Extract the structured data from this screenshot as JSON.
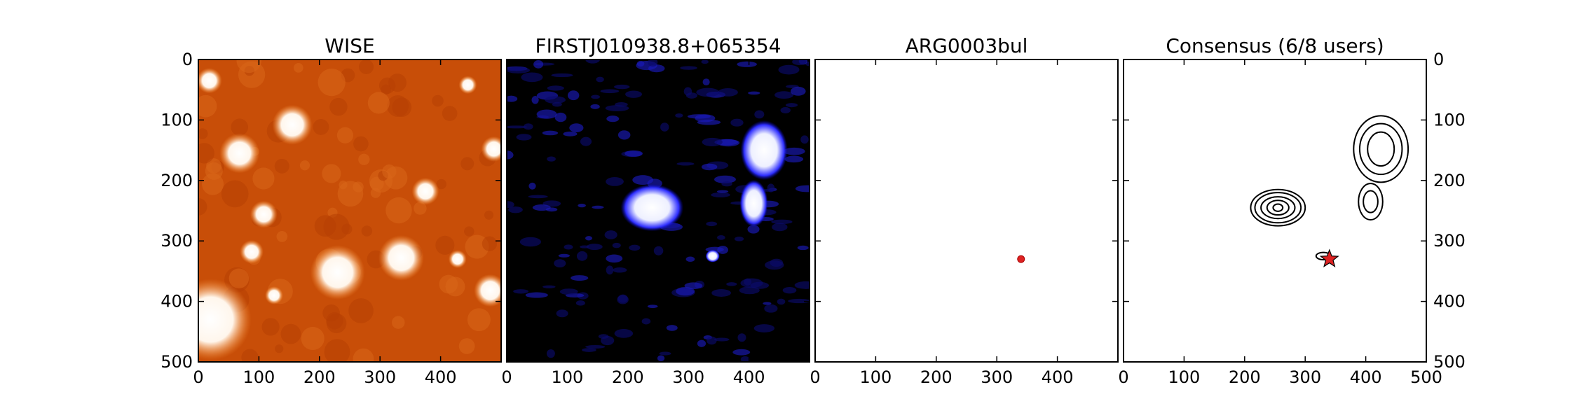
{
  "chart_data": [
    {
      "type": "image",
      "title": "WISE",
      "xlim": [
        0,
        500
      ],
      "ylim": [
        500,
        0
      ],
      "xticks": [
        0,
        100,
        200,
        300,
        400
      ],
      "yticks": [
        0,
        100,
        200,
        300,
        400,
        500
      ],
      "colormap": "orange-to-white",
      "background_color": "#c84e08",
      "sources": [
        {
          "x": 18,
          "y": 35,
          "r": 14
        },
        {
          "x": 155,
          "y": 108,
          "r": 22
        },
        {
          "x": 68,
          "y": 155,
          "r": 22
        },
        {
          "x": 488,
          "y": 148,
          "r": 14
        },
        {
          "x": 445,
          "y": 42,
          "r": 10
        },
        {
          "x": 375,
          "y": 218,
          "r": 15
        },
        {
          "x": 108,
          "y": 256,
          "r": 15
        },
        {
          "x": 88,
          "y": 318,
          "r": 13
        },
        {
          "x": 230,
          "y": 352,
          "r": 30
        },
        {
          "x": 335,
          "y": 328,
          "r": 25
        },
        {
          "x": 125,
          "y": 390,
          "r": 10
        },
        {
          "x": 482,
          "y": 382,
          "r": 18
        },
        {
          "x": 428,
          "y": 330,
          "r": 10
        },
        {
          "x": 20,
          "y": 430,
          "r": 45
        }
      ]
    },
    {
      "type": "image",
      "title": "FIRSTJ010938.8+065354",
      "xlim": [
        0,
        500
      ],
      "ylim": [
        500,
        0
      ],
      "xticks": [
        0,
        100,
        200,
        300,
        400
      ],
      "yticks": [
        0,
        100,
        200,
        300,
        400,
        500
      ],
      "colormap": "black-blue-white",
      "background_color": "#000000",
      "sources": [
        {
          "x": 425,
          "y": 150,
          "rx": 30,
          "ry": 38
        },
        {
          "x": 240,
          "y": 245,
          "rx": 40,
          "ry": 30
        },
        {
          "x": 408,
          "y": 238,
          "rx": 18,
          "ry": 30
        },
        {
          "x": 340,
          "y": 325,
          "rx": 9,
          "ry": 8
        }
      ]
    },
    {
      "type": "scatter",
      "title": "ARG0003bul",
      "xlim": [
        0,
        500
      ],
      "ylim": [
        500,
        0
      ],
      "xticks": [
        0,
        100,
        200,
        300,
        400
      ],
      "yticks": [
        0,
        100,
        200,
        300,
        400,
        500
      ],
      "points": [
        {
          "x": 340,
          "y": 330
        }
      ],
      "point_color": "#dd2222"
    },
    {
      "type": "contour",
      "title": "Consensus (6/8 users)",
      "xlim": [
        0,
        500
      ],
      "ylim": [
        500,
        0
      ],
      "xticks": [
        0,
        100,
        200,
        300,
        400,
        500
      ],
      "yticks": [
        0,
        100,
        200,
        300,
        400,
        500
      ],
      "contour_groups": [
        {
          "x": 425,
          "y": 148,
          "levels": [
            [
              45,
              55
            ],
            [
              35,
              42
            ],
            [
              22,
              28
            ]
          ]
        },
        {
          "x": 255,
          "y": 245,
          "levels": [
            [
              45,
              30
            ],
            [
              38,
              25
            ],
            [
              28,
              18
            ],
            [
              18,
              12
            ],
            [
              8,
              6
            ]
          ]
        },
        {
          "x": 408,
          "y": 235,
          "levels": [
            [
              20,
              30
            ],
            [
              12,
              18
            ]
          ]
        },
        {
          "x": 330,
          "y": 325,
          "levels": [
            [
              12,
              6
            ]
          ]
        }
      ],
      "star": {
        "x": 340,
        "y": 330
      },
      "star_color": "#dd2222"
    }
  ]
}
